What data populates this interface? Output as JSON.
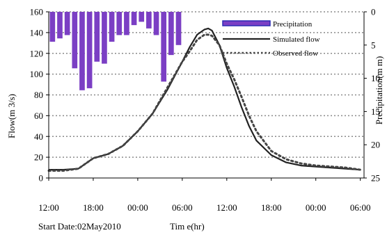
{
  "chart_data": {
    "type": "line",
    "x_unit": "hours",
    "x_ticks": [
      "12:00",
      "18:00",
      "00:00",
      "06:00",
      "12:00",
      "18:00",
      "00:00",
      "06:00"
    ],
    "x_tick_hours": [
      0,
      6,
      12,
      18,
      24,
      30,
      36,
      42
    ],
    "xlim": [
      0,
      42.5
    ],
    "xlabel": "Tim e(hr)",
    "start_date_label": "Start Date:02May2010",
    "ylabel_left": "Flow(m 3/s)",
    "ylim_left": [
      0,
      160
    ],
    "yticks_left": [
      0,
      20,
      40,
      60,
      80,
      100,
      120,
      140,
      160
    ],
    "ylabel_right": "Precipitation(m m)",
    "ylim_right": [
      0,
      25
    ],
    "yticks_right": [
      0,
      5,
      10,
      15,
      20,
      25
    ],
    "right_axis_inverted": true,
    "grid": "horizontal-dotted",
    "legend_position": "top-right",
    "legend": {
      "precipitation": "Precipitation",
      "simulated": "Simulated flow",
      "observed": "Observed flow"
    },
    "precipitation": {
      "name": "Precipitation",
      "style": "bar",
      "color": "#7B3FC4",
      "x": [
        0.5,
        1.5,
        2.5,
        3.5,
        4.5,
        5.5,
        6.5,
        7.5,
        8.5,
        9.5,
        10.5,
        11.5,
        12.5,
        13.5,
        14.5,
        15.5,
        16.5,
        17.5
      ],
      "values": [
        4.5,
        4,
        3.5,
        8.5,
        11.8,
        11.5,
        7.5,
        7.8,
        4.5,
        3.5,
        3.5,
        2,
        1.5,
        2.5,
        3.5,
        10.5,
        6.5,
        5
      ]
    },
    "series": [
      {
        "name": "Simulated flow",
        "style": "solid",
        "color": "#222222",
        "x": [
          0,
          2,
          4,
          5,
          6,
          8,
          10,
          12,
          14,
          16,
          18,
          19,
          20,
          21,
          21.5,
          22,
          23,
          24,
          25,
          26,
          27,
          28,
          30,
          32,
          34,
          36,
          38,
          40,
          42
        ],
        "values": [
          8,
          8,
          9,
          14,
          19,
          23,
          31,
          45,
          62,
          85,
          112,
          126,
          138,
          143,
          144,
          142,
          128,
          106,
          88,
          68,
          50,
          36,
          22,
          15,
          12,
          11,
          10,
          9,
          8
        ]
      },
      {
        "name": "Observed flow",
        "style": "dotted",
        "color": "#444444",
        "x": [
          0,
          2,
          4,
          5,
          6,
          8,
          10,
          12,
          14,
          16,
          18,
          19,
          20,
          21,
          21.5,
          22,
          23,
          24,
          25,
          26,
          27,
          28,
          30,
          32,
          34,
          36,
          38,
          40,
          42
        ],
        "values": [
          7,
          7,
          9,
          14,
          19,
          23,
          31,
          45,
          62,
          87,
          112,
          122,
          133,
          138,
          138,
          137,
          128,
          110,
          95,
          78,
          60,
          45,
          26,
          18,
          14,
          12,
          11,
          10,
          8
        ]
      }
    ]
  }
}
